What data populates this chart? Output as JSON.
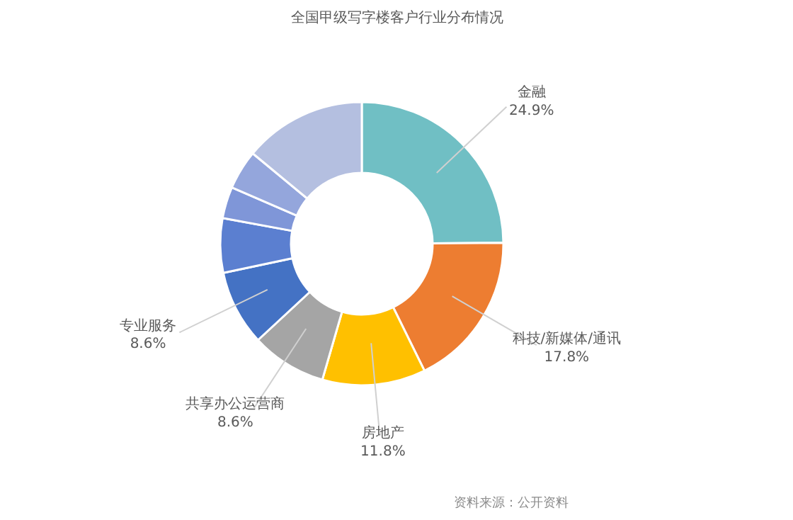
{
  "chart_data": {
    "type": "donut",
    "title": "全国甲级写字楼客户行业分布情况",
    "categories": [
      "金融",
      "科技/新媒体/通讯",
      "房地产",
      "共享办公运营商",
      "专业服务",
      null,
      null,
      null,
      null
    ],
    "values": [
      24.9,
      17.8,
      11.8,
      8.6,
      8.6,
      6.2,
      3.6,
      4.5,
      14.0
    ],
    "colors": [
      "#70bfc4",
      "#ed7d31",
      "#ffc000",
      "#a5a5a5",
      "#4472c4",
      "#5b7fd0",
      "#7f96d8",
      "#94a6dc",
      "#b4bfe0"
    ],
    "value_labels": [
      "24.9%",
      "17.8%",
      "11.8%",
      "8.6%",
      "8.6%",
      null,
      null,
      null,
      null
    ],
    "annotations": [
      "资料来源：公开资料"
    ]
  }
}
